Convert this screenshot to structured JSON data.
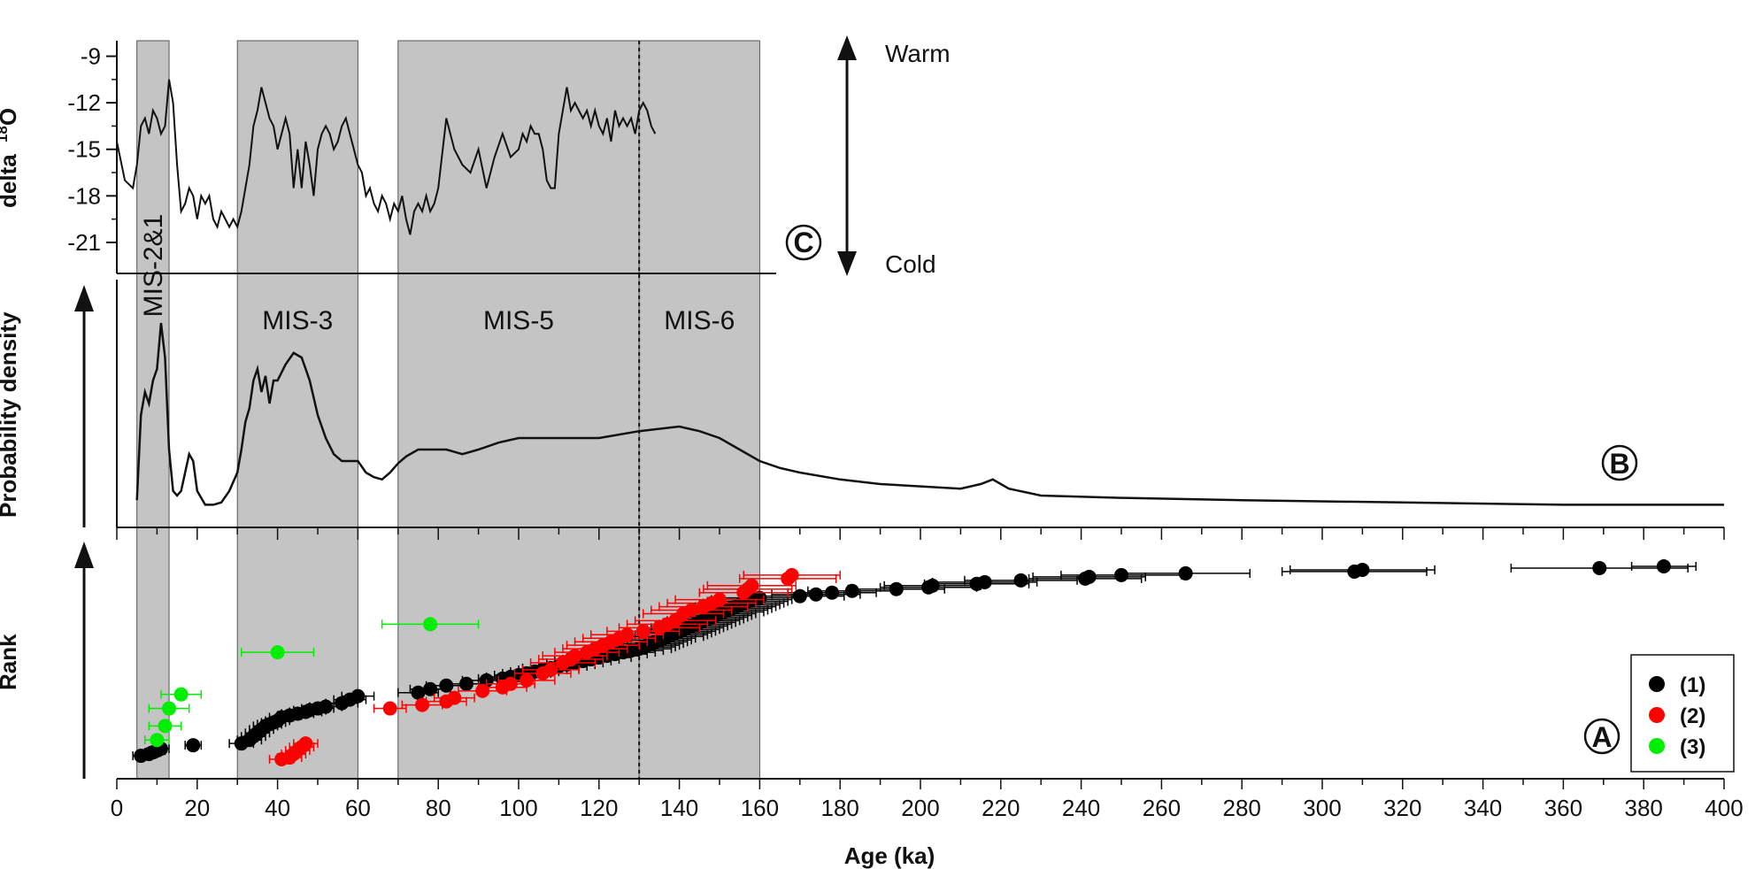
{
  "chart_data": [
    {
      "type": "line",
      "panel": "C",
      "ylabel": "delta 18O",
      "ylabel_main": "delta",
      "ylabel_mass": "18",
      "ylabel_element": "O",
      "ylim": [
        -23,
        -8
      ],
      "yticks": [
        -9,
        -12,
        -15,
        -18,
        -21
      ],
      "annotations": [
        "Warm",
        "Cold"
      ],
      "series": [
        {
          "x": [
            0,
            2,
            4,
            5,
            6,
            7,
            8,
            9,
            10,
            11,
            12,
            13,
            14,
            15,
            16,
            17,
            18,
            19,
            20,
            21,
            22,
            23,
            24,
            25,
            26,
            27,
            28,
            29,
            30,
            31,
            32,
            33,
            34,
            35,
            36,
            37,
            38,
            39,
            40,
            41,
            42,
            43,
            44,
            45,
            46,
            47,
            48,
            49,
            50,
            51,
            52,
            53,
            54,
            55,
            56,
            57,
            58,
            59,
            60,
            61,
            62,
            63,
            64,
            65,
            66,
            67,
            68,
            69,
            70,
            71,
            72,
            73,
            74,
            75,
            76,
            77,
            78,
            79,
            80,
            82,
            84,
            86,
            88,
            90,
            92,
            94,
            96,
            98,
            100,
            101,
            102,
            103,
            104,
            105,
            106,
            107,
            108,
            109,
            110,
            111,
            112,
            113,
            114,
            115,
            116,
            117,
            118,
            119,
            120,
            121,
            122,
            123,
            124,
            125,
            126,
            127,
            128,
            129,
            130,
            131,
            132,
            133,
            134
          ],
          "y": [
            -14.5,
            -17,
            -17.5,
            -16,
            -13.5,
            -13,
            -14,
            -12.5,
            -13,
            -14,
            -13.5,
            -10.5,
            -12,
            -16,
            -19,
            -18.5,
            -17.5,
            -18,
            -19.5,
            -18,
            -18.5,
            -18,
            -19.5,
            -20,
            -19,
            -19.5,
            -20,
            -19.5,
            -20,
            -19,
            -17.5,
            -16,
            -13.5,
            -12.5,
            -11,
            -12,
            -13,
            -13.5,
            -15,
            -14,
            -13,
            -14,
            -17.5,
            -15,
            -17.5,
            -14.5,
            -16,
            -18,
            -15,
            -14,
            -13.5,
            -14,
            -15,
            -14.5,
            -13.5,
            -13,
            -14,
            -15,
            -16,
            -16.5,
            -18,
            -17.5,
            -18.5,
            -19,
            -18,
            -18.5,
            -19.5,
            -18.5,
            -19,
            -18,
            -19.5,
            -20.5,
            -19,
            -18.5,
            -19,
            -18,
            -19,
            -18.5,
            -17.5,
            -13,
            -15,
            -16,
            -16.5,
            -15,
            -17.5,
            -15.5,
            -14,
            -15.5,
            -15,
            -14,
            -14.5,
            -13.5,
            -14,
            -14,
            -15,
            -17,
            -17.5,
            -17.5,
            -14,
            -12.5,
            -11,
            -12.5,
            -12,
            -12.5,
            -13,
            -12.5,
            -13.5,
            -12.5,
            -13.5,
            -14,
            -13,
            -14.5,
            -12.5,
            -13.5,
            -13,
            -13.5,
            -13,
            -14,
            -12.5,
            -12,
            -12.5,
            -13.5,
            -14
          ]
        }
      ]
    },
    {
      "type": "area",
      "panel": "B",
      "ylabel": "Probability density",
      "series": [
        {
          "x": [
            5,
            6,
            7,
            8,
            9,
            10,
            11,
            12,
            13,
            14,
            15,
            16,
            17,
            18,
            19,
            20,
            22,
            24,
            26,
            28,
            30,
            31,
            32,
            33,
            34,
            35,
            36,
            37,
            38,
            39,
            40,
            42,
            44,
            46,
            48,
            50,
            52,
            54,
            56,
            58,
            60,
            62,
            64,
            66,
            68,
            70,
            72,
            75,
            78,
            82,
            86,
            90,
            95,
            100,
            110,
            120,
            130,
            140,
            145,
            150,
            155,
            160,
            165,
            170,
            180,
            190,
            200,
            210,
            215,
            218,
            222,
            230,
            250,
            280,
            320,
            360,
            400
          ],
          "y": [
            0.08,
            0.45,
            0.55,
            0.5,
            0.6,
            0.65,
            0.85,
            0.7,
            0.3,
            0.12,
            0.1,
            0.12,
            0.2,
            0.28,
            0.25,
            0.12,
            0.06,
            0.06,
            0.07,
            0.12,
            0.2,
            0.3,
            0.42,
            0.48,
            0.6,
            0.65,
            0.55,
            0.62,
            0.5,
            0.6,
            0.6,
            0.67,
            0.72,
            0.7,
            0.6,
            0.45,
            0.35,
            0.28,
            0.25,
            0.25,
            0.25,
            0.2,
            0.18,
            0.17,
            0.2,
            0.24,
            0.27,
            0.3,
            0.3,
            0.3,
            0.28,
            0.3,
            0.33,
            0.35,
            0.35,
            0.35,
            0.38,
            0.4,
            0.38,
            0.35,
            0.3,
            0.25,
            0.22,
            0.2,
            0.17,
            0.15,
            0.14,
            0.13,
            0.15,
            0.17,
            0.13,
            0.1,
            0.09,
            0.08,
            0.07,
            0.06,
            0.06
          ]
        }
      ]
    },
    {
      "type": "scatter",
      "panel": "A",
      "xlabel": "Age (ka)",
      "ylabel": "Rank",
      "xlim": [
        0,
        400
      ],
      "xticks": [
        0,
        20,
        40,
        60,
        80,
        100,
        120,
        140,
        160,
        180,
        200,
        220,
        240,
        260,
        280,
        300,
        320,
        340,
        360,
        380,
        400
      ],
      "legend": "bottom-right",
      "series": [
        {
          "name": "(1)",
          "color": "#000000",
          "x": [
            6,
            8,
            9,
            10,
            11,
            19,
            31,
            33,
            34,
            35,
            36,
            37,
            38,
            39,
            40,
            41,
            43,
            45,
            47,
            48,
            50,
            52,
            56,
            58,
            60,
            75,
            78,
            82,
            87,
            92,
            96,
            98,
            100,
            102,
            104,
            106,
            108,
            110,
            112,
            114,
            116,
            118,
            120,
            122,
            124,
            126,
            128,
            130,
            131,
            132,
            133,
            134,
            135,
            136,
            137,
            138,
            139,
            140,
            141,
            142,
            143,
            144,
            145,
            146,
            147,
            148,
            149,
            150,
            151,
            152,
            153,
            154,
            155,
            156,
            157,
            158,
            160,
            170,
            174,
            178,
            183,
            194,
            202,
            203,
            214,
            216,
            225,
            241,
            242,
            250,
            266,
            308,
            310,
            369,
            385
          ],
          "y": [
            3,
            4,
            5,
            6,
            7,
            9,
            10,
            12,
            14,
            16,
            18,
            20,
            21,
            22,
            23,
            25,
            26,
            27,
            28,
            29,
            30,
            31,
            33,
            35,
            37,
            39,
            41,
            43,
            44,
            46,
            47,
            48,
            49,
            50,
            51,
            52,
            53,
            54,
            55,
            56,
            57,
            58,
            59,
            60,
            61,
            62,
            63,
            64,
            65,
            66,
            67,
            68,
            69,
            70,
            71,
            72,
            73,
            74,
            75,
            76,
            77,
            78,
            79,
            80,
            81,
            82,
            83,
            84,
            85,
            86,
            87,
            88,
            89,
            90,
            91,
            92,
            93,
            94,
            95,
            96,
            97,
            98,
            99,
            100,
            101,
            102,
            103,
            104,
            105,
            106,
            107,
            108,
            109,
            110,
            111
          ],
          "xerr": [
            2,
            2,
            2,
            2,
            2,
            2,
            3,
            3,
            3,
            3,
            3,
            3,
            3,
            3,
            3,
            3,
            3,
            4,
            4,
            4,
            4,
            4,
            4,
            4,
            4,
            5,
            5,
            5,
            5,
            6,
            6,
            6,
            6,
            6,
            6,
            6,
            7,
            7,
            7,
            7,
            7,
            7,
            8,
            8,
            8,
            8,
            8,
            8,
            8,
            8,
            8,
            8,
            8,
            8,
            9,
            9,
            9,
            9,
            9,
            9,
            9,
            9,
            9,
            9,
            9,
            9,
            9,
            9,
            10,
            10,
            10,
            10,
            10,
            10,
            10,
            10,
            10,
            11,
            11,
            11,
            11,
            12,
            12,
            12,
            13,
            13,
            14,
            14,
            14,
            15,
            16,
            18,
            18,
            22,
            8
          ]
        },
        {
          "name": "(2)",
          "color": "#ff0000",
          "x": [
            41,
            43,
            44,
            45,
            46,
            47,
            68,
            76,
            82,
            84,
            91,
            96,
            98,
            102,
            106,
            108,
            111,
            113,
            114,
            117,
            119,
            121,
            123,
            125,
            127,
            131,
            135,
            137,
            139,
            141,
            143,
            146,
            148,
            150,
            156,
            157,
            158,
            167,
            168
          ],
          "y": [
            1,
            2,
            4,
            6,
            8,
            10,
            30,
            32,
            34,
            36,
            40,
            42,
            44,
            46,
            50,
            52,
            56,
            58,
            60,
            62,
            64,
            66,
            68,
            70,
            72,
            74,
            76,
            78,
            80,
            84,
            86,
            88,
            90,
            92,
            96,
            98,
            100,
            104,
            106
          ],
          "xerr": [
            3,
            3,
            3,
            3,
            3,
            3,
            4,
            5,
            5,
            5,
            6,
            6,
            6,
            7,
            7,
            7,
            8,
            8,
            8,
            8,
            8,
            9,
            9,
            9,
            9,
            9,
            10,
            10,
            10,
            10,
            10,
            11,
            11,
            11,
            11,
            11,
            11,
            12,
            12
          ]
        },
        {
          "name": "(3)",
          "color": "#00ee00",
          "x": [
            10,
            12,
            13,
            16,
            40,
            78
          ],
          "y": [
            12,
            20,
            30,
            38,
            62,
            78
          ],
          "xerr": [
            3,
            4,
            5,
            5,
            9,
            12
          ]
        }
      ]
    }
  ],
  "stages": [
    {
      "label": "MIS-2&1",
      "x0": 5,
      "x1": 13
    },
    {
      "label": "MIS-3",
      "x0": 30,
      "x1": 60
    },
    {
      "label": "MIS-5",
      "x0": 70,
      "x1": 130
    },
    {
      "label": "MIS-6",
      "x0": 130,
      "x1": 160
    }
  ],
  "boundary_x": 130,
  "panel_letters": {
    "a": "A",
    "b": "B",
    "c": "C"
  }
}
